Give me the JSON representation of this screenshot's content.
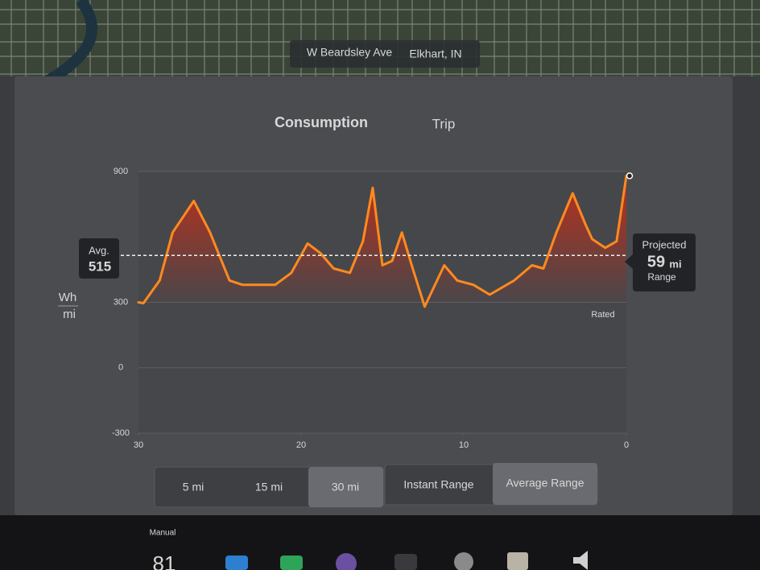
{
  "map": {
    "street": "W Beardsley Ave",
    "city": "Elkhart, IN"
  },
  "tabs": [
    "Consumption",
    "Trip"
  ],
  "chart_data": {
    "type": "line",
    "y_label": [
      "Wh",
      "mi"
    ],
    "x": [
      30,
      29.7,
      28.7,
      27.9,
      26.6,
      25.6,
      24.4,
      23.6,
      21.6,
      20.6,
      19.6,
      18.8,
      18.0,
      17.0,
      16.2,
      15.6,
      15.0,
      14.4,
      13.8,
      13.2,
      12.4,
      11.2,
      10.4,
      9.4,
      8.4,
      6.9,
      5.8,
      5.1,
      4.3,
      3.3,
      2.5,
      2.1,
      1.3,
      0.6,
      0
    ],
    "series": [
      {
        "color": "#ff8a1e",
        "values": [
          300,
          296,
          400,
          620,
          765,
          620,
          400,
          380,
          380,
          435,
          570,
          525,
          455,
          435,
          580,
          825,
          470,
          490,
          620,
          470,
          280,
          470,
          400,
          380,
          335,
          400,
          470,
          455,
          620,
          800,
          655,
          590,
          550,
          580,
          880
        ]
      }
    ],
    "xlim": [
      30,
      0
    ],
    "xticks": [
      30,
      20,
      10,
      0
    ],
    "ylim": [
      -300,
      900
    ],
    "yticks": [
      -300,
      0,
      300,
      900
    ],
    "avg": {
      "label": "Avg.",
      "value": 515
    },
    "rated_label": "Rated",
    "projected": {
      "title": "Projected",
      "value": 59,
      "unit": "mi",
      "label": "Range"
    }
  },
  "distance_buttons": [
    "5 mi",
    "15 mi",
    "30 mi"
  ],
  "range_buttons": [
    "Instant Range",
    "Average Range"
  ],
  "status_bar": {
    "mode": "Manual",
    "temperature": "81"
  }
}
